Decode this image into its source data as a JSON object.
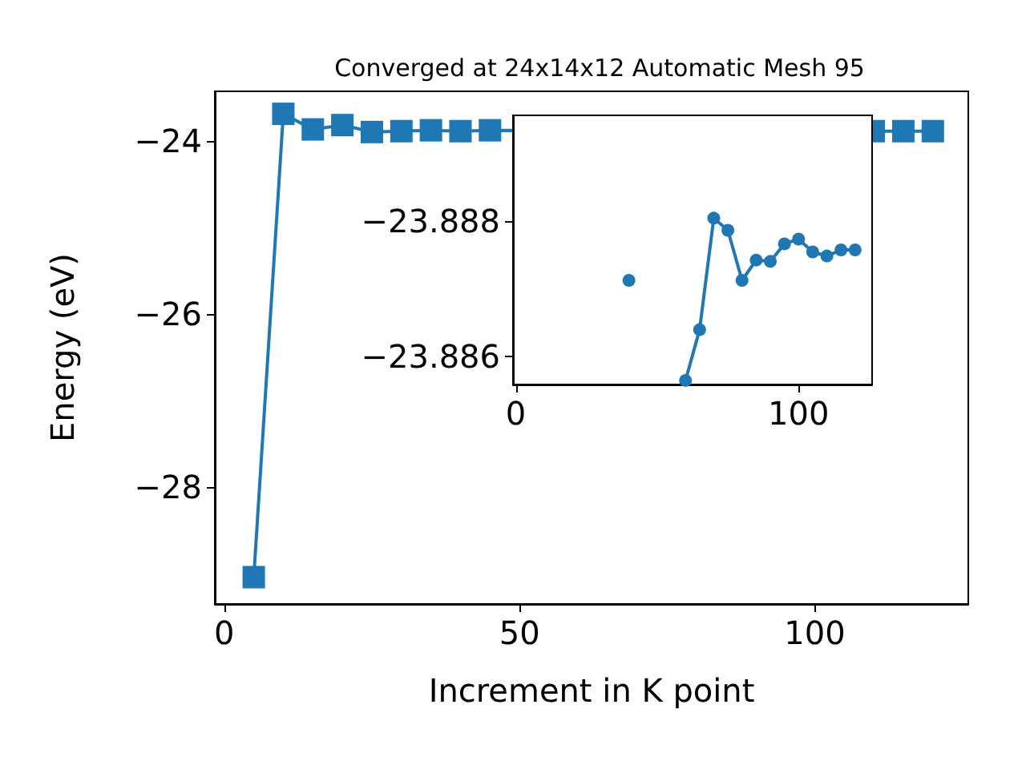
{
  "chart_data": [
    {
      "type": "line",
      "title": "Converged at 24x14x12 Automatic Mesh 95",
      "xlabel": "Increment in K point",
      "ylabel": "Energy (eV)",
      "x": [
        5,
        10,
        15,
        20,
        25,
        30,
        35,
        40,
        45,
        50,
        55,
        60,
        65,
        70,
        75,
        80,
        85,
        90,
        95,
        100,
        105,
        110,
        115,
        120
      ],
      "series": [
        {
          "color": "#1f77b4",
          "values": [
            -29.04,
            -23.69,
            -23.87,
            -23.82,
            -23.9,
            -23.89,
            -23.88,
            -23.89,
            -23.88,
            null,
            null,
            null,
            null,
            null,
            null,
            null,
            null,
            null,
            null,
            null,
            null,
            -23.89,
            -23.89,
            -23.89
          ]
        }
      ],
      "xlim": [
        -1.6,
        126
      ],
      "ylim": [
        -29.35,
        -23.43
      ],
      "xticks": [
        0,
        50,
        100
      ],
      "yticks": [
        -28,
        -26,
        -24
      ],
      "grid": false,
      "marker": "square",
      "line_style": "solid"
    },
    {
      "type": "line",
      "x": [
        40,
        55,
        60,
        65,
        70,
        75,
        80,
        85,
        90,
        95,
        100,
        105,
        110,
        115,
        120
      ],
      "series": [
        {
          "color": "#1f77b4",
          "values": [
            -23.88712,
            null,
            -23.88564,
            -23.88639,
            -23.88804,
            -23.88786,
            -23.88712,
            -23.88742,
            -23.8874,
            -23.88766,
            -23.88773,
            -23.88754,
            -23.88748,
            -23.88757,
            -23.88757
          ]
        }
      ],
      "xlim": [
        -1,
        126
      ],
      "ylim": [
        -23.88558,
        -23.88956
      ],
      "xticks": [
        0,
        100
      ],
      "yticks": [
        -23.888,
        -23.886
      ],
      "grid": false,
      "marker": "circle",
      "line_style": "solid"
    }
  ]
}
